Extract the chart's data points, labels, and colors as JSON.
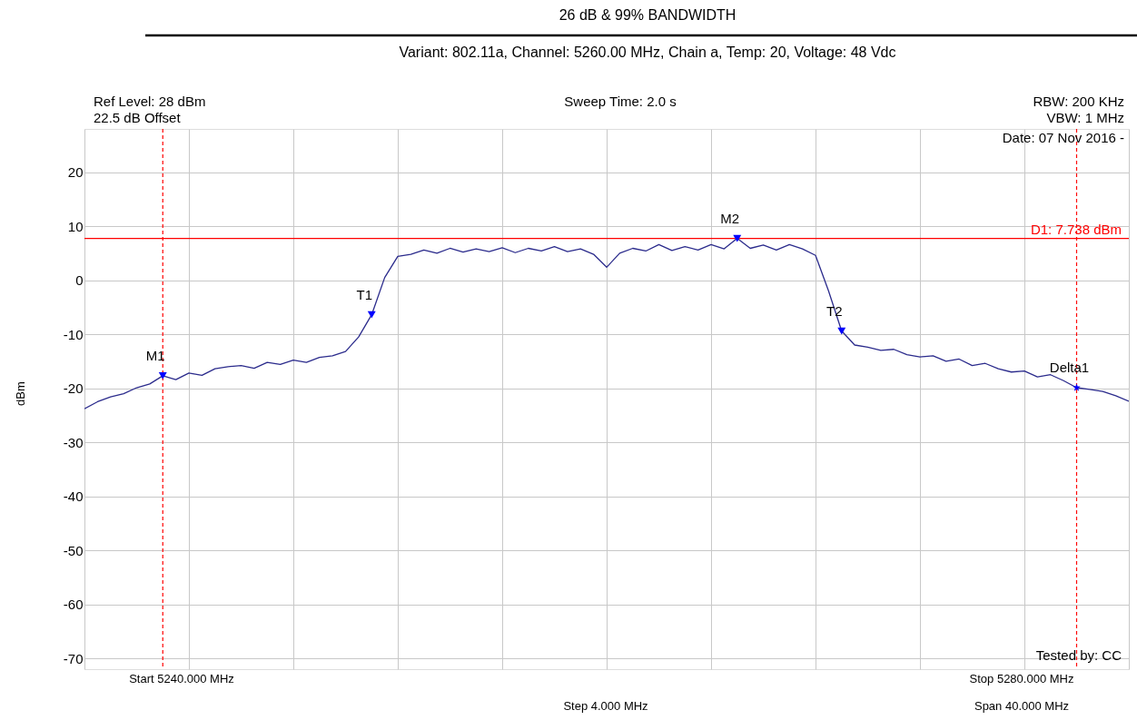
{
  "chart_data": {
    "type": "line",
    "title": "26 dB & 99% BANDWIDTH",
    "subtitle": "Variant: 802.11a, Channel: 5260.00 MHz, Chain a, Temp: 20, Voltage: 48 Vdc",
    "ylabel": "dBm",
    "categories": [
      null,
      null,
      null,
      null,
      null,
      null,
      null,
      null,
      null,
      null,
      null,
      null,
      null,
      null,
      null,
      null,
      null,
      null,
      null,
      null,
      null,
      null,
      null,
      null,
      null,
      null,
      null,
      null,
      null,
      null,
      null,
      null,
      null,
      null,
      null,
      null,
      null,
      null,
      null,
      null,
      null,
      null,
      null,
      null,
      null,
      null,
      null,
      null,
      null,
      null,
      null,
      null,
      null,
      null,
      null,
      null,
      null,
      null,
      null,
      null,
      null,
      null,
      null,
      null,
      null,
      null,
      null,
      null,
      null,
      null,
      null,
      null,
      null,
      null,
      null,
      null,
      null,
      null,
      null,
      null,
      null
    ],
    "series": [
      {
        "color": "#2b2b8c",
        "values": [
          -23.8,
          -22.5,
          -21.6,
          -21.0,
          -19.9,
          -19.2,
          -17.7,
          -18.4,
          -17.2,
          -17.6,
          -16.4,
          -16.0,
          -15.8,
          -16.3,
          -15.2,
          -15.6,
          -14.8,
          -15.2,
          -14.3,
          -14.0,
          -13.2,
          -10.5,
          -6.4,
          0.5,
          4.4,
          4.8,
          5.6,
          5.0,
          5.9,
          5.2,
          5.8,
          5.3,
          6.0,
          5.1,
          5.9,
          5.4,
          6.2,
          5.3,
          5.8,
          4.8,
          2.4,
          5.0,
          5.9,
          5.4,
          6.6,
          5.5,
          6.2,
          5.6,
          6.6,
          5.8,
          7.738,
          5.9,
          6.5,
          5.6,
          6.6,
          5.8,
          4.6,
          -2.0,
          -9.4,
          -12.0,
          -12.4,
          -13.0,
          -12.8,
          -13.8,
          -14.2,
          -14.0,
          -15.0,
          -14.6,
          -15.8,
          -15.4,
          -16.4,
          -17.0,
          -16.8,
          -17.9,
          -17.5,
          -18.6,
          -19.9,
          -20.2,
          -20.6,
          -21.4,
          -22.4
        ]
      },
      {
        "type": "scatter",
        "name": "M1",
        "marker": "triangle",
        "color": "#0000ff",
        "line_style": "dashed",
        "values": [
          null,
          null,
          null,
          null,
          null,
          null,
          -17.7,
          null,
          null,
          null,
          null,
          null,
          null,
          null,
          null,
          null,
          null,
          null,
          null,
          null,
          null,
          null,
          null,
          null,
          null,
          null,
          null,
          null,
          null,
          null,
          null,
          null,
          null,
          null,
          null,
          null,
          null,
          null,
          null,
          null,
          null,
          null,
          null,
          null,
          null,
          null,
          null,
          null,
          null,
          null,
          null,
          null,
          null,
          null,
          null,
          null,
          null,
          null,
          null,
          null,
          null,
          null,
          null,
          null,
          null,
          null,
          null,
          null,
          null,
          null,
          null,
          null,
          null,
          null,
          null,
          null,
          null,
          null,
          null,
          null,
          null
        ]
      },
      {
        "type": "scatter",
        "name": "T1",
        "marker": "triangle",
        "color": "#0000ff",
        "values": [
          null,
          null,
          null,
          null,
          null,
          null,
          null,
          null,
          null,
          null,
          null,
          null,
          null,
          null,
          null,
          null,
          null,
          null,
          null,
          null,
          null,
          null,
          -6.4,
          null,
          null,
          null,
          null,
          null,
          null,
          null,
          null,
          null,
          null,
          null,
          null,
          null,
          null,
          null,
          null,
          null,
          null,
          null,
          null,
          null,
          null,
          null,
          null,
          null,
          null,
          null,
          null,
          null,
          null,
          null,
          null,
          null,
          null,
          null,
          null,
          null,
          null,
          null,
          null,
          null,
          null,
          null,
          null,
          null,
          null,
          null,
          null,
          null,
          null,
          null,
          null,
          null,
          null,
          null,
          null,
          null,
          null
        ]
      },
      {
        "type": "scatter",
        "name": "M2",
        "marker": "triangle",
        "color": "#0000ff",
        "values": [
          null,
          null,
          null,
          null,
          null,
          null,
          null,
          null,
          null,
          null,
          null,
          null,
          null,
          null,
          null,
          null,
          null,
          null,
          null,
          null,
          null,
          null,
          null,
          null,
          null,
          null,
          null,
          null,
          null,
          null,
          null,
          null,
          null,
          null,
          null,
          null,
          null,
          null,
          null,
          null,
          null,
          null,
          null,
          null,
          null,
          null,
          null,
          null,
          null,
          null,
          7.738,
          null,
          null,
          null,
          null,
          null,
          null,
          null,
          null,
          null,
          null,
          null,
          null,
          null,
          null,
          null,
          null,
          null,
          null,
          null,
          null,
          null,
          null,
          null,
          null,
          null,
          null,
          null,
          null,
          null,
          null
        ]
      },
      {
        "type": "scatter",
        "name": "T2",
        "marker": "triangle",
        "color": "#0000ff",
        "values": [
          null,
          null,
          null,
          null,
          null,
          null,
          null,
          null,
          null,
          null,
          null,
          null,
          null,
          null,
          null,
          null,
          null,
          null,
          null,
          null,
          null,
          null,
          null,
          null,
          null,
          null,
          null,
          null,
          null,
          null,
          null,
          null,
          null,
          null,
          null,
          null,
          null,
          null,
          null,
          null,
          null,
          null,
          null,
          null,
          null,
          null,
          null,
          null,
          null,
          null,
          null,
          null,
          null,
          null,
          null,
          null,
          null,
          null,
          -9.4,
          null,
          null,
          null,
          null,
          null,
          null,
          null,
          null,
          null,
          null,
          null,
          null,
          null,
          null,
          null,
          null,
          null,
          null,
          null,
          null,
          null,
          null
        ]
      },
      {
        "type": "scatter",
        "name": "Delta1",
        "marker": "star",
        "color": "#0000ff",
        "line_style": "dashed",
        "values": [
          null,
          null,
          null,
          null,
          null,
          null,
          null,
          null,
          null,
          null,
          null,
          null,
          null,
          null,
          null,
          null,
          null,
          null,
          null,
          null,
          null,
          null,
          null,
          null,
          null,
          null,
          null,
          null,
          null,
          null,
          null,
          null,
          null,
          null,
          null,
          null,
          null,
          null,
          null,
          null,
          null,
          null,
          null,
          null,
          null,
          null,
          null,
          null,
          null,
          null,
          null,
          null,
          null,
          null,
          null,
          null,
          null,
          null,
          null,
          null,
          null,
          null,
          null,
          null,
          null,
          null,
          null,
          null,
          null,
          null,
          null,
          null,
          null,
          null,
          null,
          null,
          -19.9,
          null,
          null,
          null,
          null
        ]
      }
    ],
    "ylim": [
      -72,
      28
    ],
    "yticks": [
      -70,
      -60,
      -50,
      -40,
      -30,
      -20,
      -10,
      0,
      10,
      20
    ],
    "grid": true,
    "tick_labels": "y",
    "ref_lines": [
      {
        "axis": "y",
        "value": 7.738,
        "label": "D1: 7.738 dBm",
        "color": "#ff0000",
        "line_style": "solid"
      }
    ],
    "annotations": [
      "Ref Level: 28 dBm",
      "22.5 dB Offset",
      "Sweep Time: 2.0 s",
      "RBW: 200 KHz",
      "VBW: 1 MHz",
      "Date: 07 Nov 2016 -",
      "Tested by: CC",
      "Start 5240.000 MHz",
      "Stop 5280.000 MHz",
      "Step 4.000 MHz",
      "Span 40.000 MHz"
    ]
  }
}
